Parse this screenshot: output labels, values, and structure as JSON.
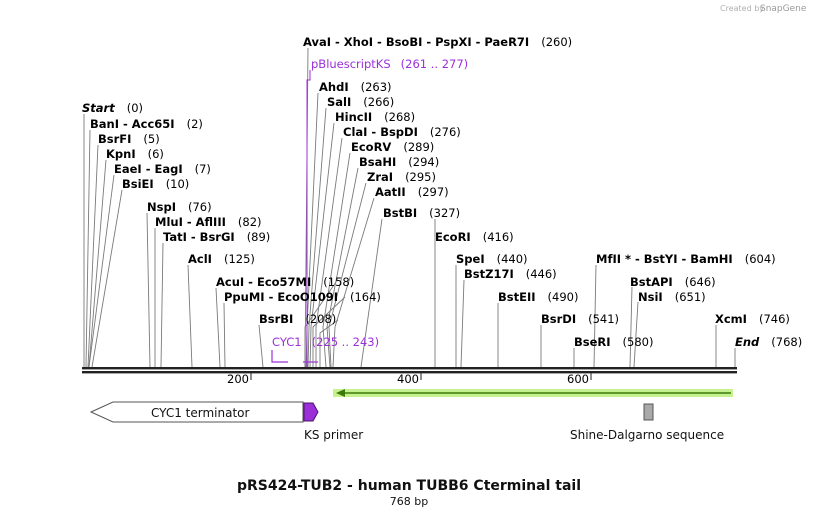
{
  "credit": {
    "prefix": "Created by",
    "brand": "SnapGene"
  },
  "sequence": {
    "length_bp": 768
  },
  "enzymes": [
    {
      "names": "AvaI  -  XhoI  -  BsoBI  -  PspXI  -  PaeR7I",
      "pos": "(260)",
      "site": 260
    },
    {
      "names": "AhdI",
      "pos": "(263)",
      "site": 263
    },
    {
      "names": "SalI",
      "pos": "(266)",
      "site": 266
    },
    {
      "names": "HincII",
      "pos": "(268)",
      "site": 268
    },
    {
      "names": "ClaI  -  BspDI",
      "pos": "(276)",
      "site": 276
    },
    {
      "names": "EcoRV",
      "pos": "(289)",
      "site": 289
    },
    {
      "names": "BsaHI",
      "pos": "(294)",
      "site": 294
    },
    {
      "names": "ZraI",
      "pos": "(295)",
      "site": 295
    },
    {
      "names": "AatII",
      "pos": "(297)",
      "site": 297
    },
    {
      "names": "BstBI",
      "pos": "(327)",
      "site": 327
    },
    {
      "names": "Start",
      "pos": "(0)",
      "site": 0
    },
    {
      "names": "BanI  -  Acc65I",
      "pos": "(2)",
      "site": 2
    },
    {
      "names": "BsrFI",
      "pos": "(5)",
      "site": 5
    },
    {
      "names": "KpnI",
      "pos": "(6)",
      "site": 6
    },
    {
      "names": "EaeI  -  EagI",
      "pos": "(7)",
      "site": 7
    },
    {
      "names": "BsiEI",
      "pos": "(10)",
      "site": 10
    },
    {
      "names": "NspI",
      "pos": "(76)",
      "site": 76
    },
    {
      "names": "MluI  -  AflIII",
      "pos": "(82)",
      "site": 82
    },
    {
      "names": "TatI  -  BsrGI",
      "pos": "(89)",
      "site": 89
    },
    {
      "names": "AclI",
      "pos": "(125)",
      "site": 125
    },
    {
      "names": "AcuI  -  Eco57MI",
      "pos": "(158)",
      "site": 158
    },
    {
      "names": "PpuMI  -  EcoO109I",
      "pos": "(164)",
      "site": 164
    },
    {
      "names": "BsrBI",
      "pos": "(208)",
      "site": 208
    },
    {
      "names": "EcoRI",
      "pos": "(416)",
      "site": 416
    },
    {
      "names": "SpeI",
      "pos": "(440)",
      "site": 440
    },
    {
      "names": "BstZ17I",
      "pos": "(446)",
      "site": 446
    },
    {
      "names": "BstEII",
      "pos": "(490)",
      "site": 490
    },
    {
      "names": "BsrDI",
      "pos": "(541)",
      "site": 541
    },
    {
      "names": "BseRI",
      "pos": "(580)",
      "site": 580
    },
    {
      "names": "MfII *  -  BstYI  -  BamHI",
      "pos": "(604)",
      "site": 604
    },
    {
      "names": "BstAPI",
      "pos": "(646)",
      "site": 646
    },
    {
      "names": "NsiI",
      "pos": "(651)",
      "site": 651
    },
    {
      "names": "XcmI",
      "pos": "(746)",
      "site": 746
    },
    {
      "names": "End",
      "pos": "(768)",
      "site": 768
    }
  ],
  "primer_sites": [
    {
      "name": "pBluescriptKS",
      "range": "(261 .. 277)",
      "start": 261,
      "end": 277
    },
    {
      "name": "CYC1",
      "range": "(225 .. 243)",
      "start": 225,
      "end": 243
    }
  ],
  "ruler": {
    "ticks": [
      "200",
      "400",
      "600"
    ]
  },
  "features": {
    "cyc1_terminator": "CYC1 terminator",
    "ks_primer": "KS primer",
    "shine_dalgarno": "Shine-Dalgarno sequence"
  },
  "title": "pRS424-TUB2 - human TUBB6 Cterminal tail",
  "subtitle": "768 bp",
  "colors": {
    "primer": "#9b30d9",
    "orf_fill": "#5aa514",
    "orf_glow": "#c6f18f",
    "terminator_fill": "#ffffff",
    "ks_fill": "#9b30d9",
    "sd_fill": "#a9a9a9"
  }
}
